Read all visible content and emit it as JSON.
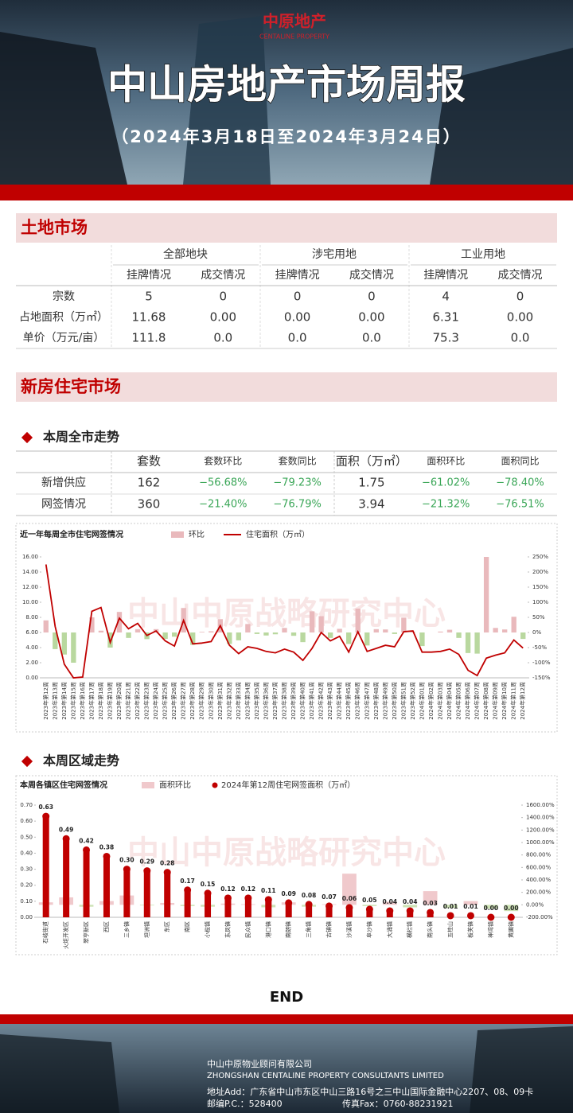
{
  "header": {
    "logo": "中原地产",
    "logo_en": "CENTALINE PROPERTY",
    "title": "中山房地产市场周报",
    "subtitle": "（2024年3月18日至2024年3月24日）"
  },
  "land": {
    "title": "土地市场",
    "groups": [
      "全部地块",
      "涉宅用地",
      "工业用地"
    ],
    "subheaders": [
      "挂牌情况",
      "成交情况"
    ],
    "rows": [
      [
        "宗数",
        "5",
        "0",
        "0",
        "0",
        "4",
        "0"
      ],
      [
        "占地面积（万㎡）",
        "11.68",
        "0.00",
        "0.00",
        "0.00",
        "6.31",
        "0.00"
      ],
      [
        "单价（万元/亩）",
        "111.8",
        "0.0",
        "0.0",
        "0.0",
        "75.3",
        "0.0"
      ]
    ]
  },
  "newhouse": {
    "title": "新房住宅市场",
    "section_city": "本周全市走势",
    "section_district": "本周区域走势",
    "table": {
      "headers": [
        "套数",
        "套数环比",
        "套数同比",
        "面积（万㎡）",
        "面积环比",
        "面积同比"
      ],
      "rows": [
        [
          "新增供应",
          "162",
          "−56.68%",
          "−79.23%",
          "1.75",
          "−61.02%",
          "−78.40%"
        ],
        [
          "网签情况",
          "360",
          "−21.40%",
          "−76.79%",
          "3.94",
          "−21.32%",
          "−76.51%"
        ]
      ]
    }
  },
  "chart_data": [
    {
      "type": "bar-line",
      "title": "近一年每周全市住宅网签情况",
      "categories": [
        "2023年第12周",
        "2023年第13周",
        "2023年第14周",
        "2023年第15周",
        "2023年第16周",
        "2023年第17周",
        "2023年第18周",
        "2023年第19周",
        "2023年第20周",
        "2023年第21周",
        "2023年第22周",
        "2023年第23周",
        "2023年第24周",
        "2023年第25周",
        "2023年第26周",
        "2023年第27周",
        "2023年第28周",
        "2023年第29周",
        "2023年第30周",
        "2023年第31周",
        "2023年第32周",
        "2023年第33周",
        "2023年第34周",
        "2023年第35周",
        "2023年第36周",
        "2023年第37周",
        "2023年第38周",
        "2023年第39周",
        "2023年第40周",
        "2023年第41周",
        "2023年第42周",
        "2023年第43周",
        "2023年第44周",
        "2023年第45周",
        "2023年第46周",
        "2023年第47周",
        "2023年第48周",
        "2023年第49周",
        "2023年第50周",
        "2023年第51周",
        "2023年第52周",
        "2024年第01周",
        "2024年第02周",
        "2024年第03周",
        "2024年第04周",
        "2024年第05周",
        "2024年第06周",
        "2024年第07周",
        "2024年第08周",
        "2024年第09周",
        "2024年第10周",
        "2024年第11周",
        "2024年第12周"
      ],
      "series": [
        {
          "name": "环比",
          "color": "#e9b9bc",
          "negative_color": "#b9d89f",
          "axis": "y2",
          "values": [
            40,
            -55,
            -73,
            -100,
            0,
            50,
            6,
            -50,
            68,
            -18,
            11,
            -22,
            11,
            -21,
            -14,
            81,
            -41,
            2,
            4,
            44,
            -38,
            -26,
            28,
            -5,
            -10,
            -6,
            15,
            -11,
            -32,
            70,
            54,
            -18,
            12,
            -38,
            79,
            -43,
            11,
            10,
            -5,
            49,
            2,
            -45,
            0,
            3,
            9,
            -18,
            -68,
            -70,
            250,
            15,
            10,
            52,
            -21.32
          ]
        },
        {
          "name": "住宅面积（万㎡）",
          "color": "#c00000",
          "values": [
            15.0,
            6.8,
            1.8,
            0.0,
            0.1,
            8.8,
            9.3,
            4.7,
            7.9,
            6.5,
            7.2,
            5.6,
            6.2,
            4.9,
            4.2,
            7.6,
            4.5,
            4.6,
            4.8,
            6.9,
            4.3,
            3.2,
            4.1,
            3.9,
            3.5,
            3.3,
            3.8,
            3.4,
            2.3,
            3.9,
            6.0,
            4.9,
            5.5,
            3.4,
            6.1,
            3.5,
            3.9,
            4.3,
            4.1,
            6.1,
            6.2,
            3.4,
            3.4,
            3.5,
            3.8,
            3.1,
            1.0,
            0.3,
            2.6,
            3.0,
            3.3,
            5.0,
            3.94
          ]
        }
      ],
      "ylim": [
        0,
        16
      ],
      "yticks": [
        {
          "value": 0,
          "label": "0.00"
        },
        {
          "value": 2,
          "label": "2.00"
        },
        {
          "value": 4,
          "label": "4.00"
        },
        {
          "value": 6,
          "label": "6.00"
        },
        {
          "value": 8,
          "label": "8.00"
        },
        {
          "value": 10,
          "label": "10.00"
        },
        {
          "value": 12,
          "label": "12.00"
        },
        {
          "value": 14,
          "label": "14.00"
        },
        {
          "value": 16,
          "label": "16.00"
        }
      ],
      "y2lim": [
        -150,
        250
      ],
      "y2ticks": [
        {
          "value": -150,
          "label": "-150%"
        },
        {
          "value": -100,
          "label": "-100%"
        },
        {
          "value": -50,
          "label": "-50%"
        },
        {
          "value": 0,
          "label": "0%"
        },
        {
          "value": 50,
          "label": "50%"
        },
        {
          "value": 100,
          "label": "100%"
        },
        {
          "value": 150,
          "label": "150%"
        },
        {
          "value": 200,
          "label": "200%"
        },
        {
          "value": 250,
          "label": "250%"
        }
      ]
    },
    {
      "type": "bar-dot",
      "title": "本周各镇区住宅网签情况",
      "categories": [
        "石岐街道",
        "火炬开发区",
        "翠亨新区",
        "西区",
        "三乡镇",
        "坦洲镇",
        "东区",
        "南区",
        "小榄镇",
        "东凤镇",
        "民众镇",
        "港口镇",
        "南朗镇",
        "三角镇",
        "古镇镇",
        "沙溪镇",
        "阜沙镇",
        "大涌镇",
        "横栏镇",
        "南头镇",
        "五桂山",
        "板芙镇",
        "神湾镇",
        "黄圃镇"
      ],
      "series": [
        {
          "name": "面积环比",
          "color": "#f0c9cc",
          "negative_color": "#cde3b5",
          "axis": "y2",
          "values": [
            40,
            120,
            -30,
            60,
            150,
            -10,
            30,
            -20,
            -30,
            20,
            10,
            -40,
            40,
            -30,
            10,
            500,
            -20,
            50,
            -40,
            220,
            -50,
            60,
            -60,
            -100
          ]
        },
        {
          "name": "2024年第12周住宅网签面积（万㎡）",
          "color": "#c00000",
          "values": [
            0.63,
            0.49,
            0.42,
            0.38,
            0.3,
            0.29,
            0.28,
            0.17,
            0.15,
            0.12,
            0.12,
            0.11,
            0.09,
            0.08,
            0.07,
            0.06,
            0.05,
            0.04,
            0.04,
            0.03,
            0.01,
            0.01,
            0.0,
            0.0
          ],
          "value_labels": [
            "0.63",
            "0.49",
            "0.42",
            "0.38",
            "0.30",
            "0.29",
            "0.28",
            "0.17",
            "0.15",
            "0.12",
            "0.12",
            "0.11",
            "0.09",
            "0.08",
            "0.07",
            "0.06",
            "0.05",
            "0.04",
            "0.04",
            "0.03",
            "0.01",
            "0.01",
            "0.00",
            "0.00"
          ]
        }
      ],
      "ylim": [
        0,
        0.7
      ],
      "yticks": [
        {
          "value": 0,
          "label": "0.00"
        },
        {
          "value": 0.1,
          "label": "0.10"
        },
        {
          "value": 0.2,
          "label": "0.20"
        },
        {
          "value": 0.3,
          "label": "0.30"
        },
        {
          "value": 0.4,
          "label": "0.40"
        },
        {
          "value": 0.5,
          "label": "0.50"
        },
        {
          "value": 0.6,
          "label": "0.60"
        },
        {
          "value": 0.7,
          "label": "0.70"
        }
      ],
      "y2lim": [
        -200,
        1600
      ],
      "y2ticks": [
        {
          "value": -200,
          "label": "-200.00%"
        },
        {
          "value": 0,
          "label": "0.00%"
        },
        {
          "value": 200,
          "label": "200.00%"
        },
        {
          "value": 400,
          "label": "400.00%"
        },
        {
          "value": 600,
          "label": "600.00%"
        },
        {
          "value": 800,
          "label": "800.00%"
        },
        {
          "value": 1000,
          "label": "1000.00%"
        },
        {
          "value": 1200,
          "label": "1200.00%"
        },
        {
          "value": 1400,
          "label": "1400.00%"
        },
        {
          "value": 1600,
          "label": "1600.00%"
        }
      ]
    }
  ],
  "watermark": "中山中原战略研究中心",
  "end": "END",
  "footer": {
    "company": "中山中原物业顾问有限公司",
    "company_en": "ZHONGSHAN CENTALINE PROPERTY CONSULTANTS LIMITED",
    "address": "地址Add：广东省中山市东区中山三路16号之三中山国际金融中心2207、08、09卡",
    "postcode": "邮编P.C.：528400",
    "fax": "传真Fax：0760-88231921"
  }
}
